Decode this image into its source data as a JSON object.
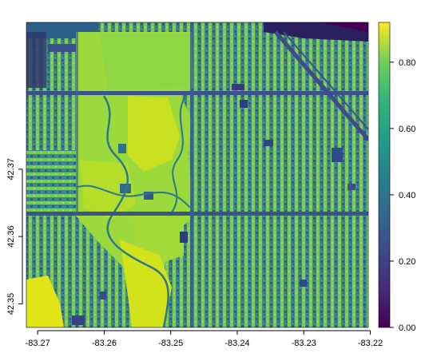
{
  "chart_data": {
    "type": "heatmap",
    "title": "",
    "xlabel": "",
    "ylabel": "",
    "x_ticks": [
      "-83.27",
      "-83.26",
      "-83.25",
      "-83.24",
      "-83.23",
      "-83.22"
    ],
    "x_tick_values": [
      -83.27,
      -83.26,
      -83.25,
      -83.24,
      -83.23,
      -83.22
    ],
    "y_ticks": [
      "42.35",
      "42.36",
      "42.37"
    ],
    "y_tick_values": [
      42.35,
      42.36,
      42.37
    ],
    "xlim": [
      -83.2717,
      -83.2203
    ],
    "ylim": [
      42.3465,
      42.3918
    ],
    "legend": {
      "placement": "right",
      "colormap": "viridis",
      "ticks": [
        "0.00",
        "0.20",
        "0.40",
        "0.60",
        "0.80"
      ],
      "tick_values": [
        0.0,
        0.2,
        0.4,
        0.6,
        0.8
      ],
      "range": [
        0.0,
        0.92
      ]
    },
    "colors": {
      "low": "#440154",
      "mid": "#21918c",
      "high": "#fde725"
    }
  }
}
